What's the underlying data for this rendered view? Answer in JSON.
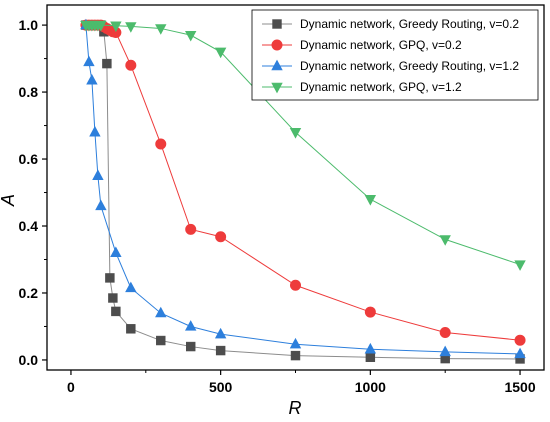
{
  "chart_data": {
    "type": "line",
    "xlabel": "R",
    "ylabel": "A",
    "xlim": [
      -80,
      1580
    ],
    "ylim": [
      -0.03,
      1.06
    ],
    "xticks": [
      0,
      500,
      1000,
      1500
    ],
    "yticks": [
      0.0,
      0.2,
      0.4,
      0.6,
      0.8,
      1.0
    ],
    "xtick_labels": [
      "0",
      "500",
      "1000",
      "1500"
    ],
    "ytick_labels": [
      "0.0",
      "0.2",
      "0.4",
      "0.6",
      "0.8",
      "1.0"
    ],
    "grid": false,
    "legend_position": "top-right",
    "series": [
      {
        "name": "Dynamic network, Greedy Routing, v=0.2",
        "marker": "square",
        "color": "#4d4d4d",
        "line_color": "#8c8c8c",
        "x": [
          50,
          60,
          70,
          80,
          90,
          100,
          110,
          120,
          130,
          140,
          150,
          200,
          300,
          400,
          500,
          750,
          1000,
          1250,
          1500
        ],
        "y": [
          1.0,
          1.0,
          1.0,
          1.0,
          1.0,
          1.0,
          0.98,
          0.885,
          0.245,
          0.185,
          0.145,
          0.093,
          0.058,
          0.04,
          0.028,
          0.013,
          0.008,
          0.004,
          0.003
        ]
      },
      {
        "name": "Dynamic network, GPQ, v=0.2",
        "marker": "circle",
        "color": "#ee3b3b",
        "line_color": "#ee3b3b",
        "x": [
          50,
          60,
          70,
          80,
          90,
          100,
          110,
          120,
          130,
          140,
          150,
          200,
          300,
          400,
          500,
          750,
          1000,
          1250,
          1500
        ],
        "y": [
          1.0,
          1.0,
          1.0,
          1.0,
          1.0,
          1.0,
          0.995,
          0.99,
          0.985,
          0.98,
          0.978,
          0.88,
          0.645,
          0.39,
          0.368,
          0.223,
          0.143,
          0.082,
          0.059
        ]
      },
      {
        "name": "Dynamic network, Greedy Routing, v=1.2",
        "marker": "triangle-up",
        "color": "#2d7fdc",
        "line_color": "#2d7fdc",
        "x": [
          50,
          60,
          70,
          80,
          90,
          100,
          150,
          200,
          300,
          400,
          500,
          750,
          1000,
          1250,
          1500
        ],
        "y": [
          1.0,
          0.89,
          0.835,
          0.68,
          0.55,
          0.46,
          0.32,
          0.215,
          0.14,
          0.1,
          0.077,
          0.047,
          0.032,
          0.024,
          0.018
        ]
      },
      {
        "name": "Dynamic network, GPQ, v=1.2",
        "marker": "triangle-down",
        "color": "#4cbb6c",
        "line_color": "#4cbb6c",
        "x": [
          50,
          60,
          70,
          80,
          90,
          100,
          150,
          200,
          300,
          400,
          500,
          750,
          1000,
          1250,
          1500
        ],
        "y": [
          1.0,
          1.0,
          1.0,
          1.0,
          1.0,
          1.0,
          0.998,
          0.996,
          0.99,
          0.97,
          0.92,
          0.68,
          0.48,
          0.36,
          0.285
        ]
      }
    ]
  }
}
